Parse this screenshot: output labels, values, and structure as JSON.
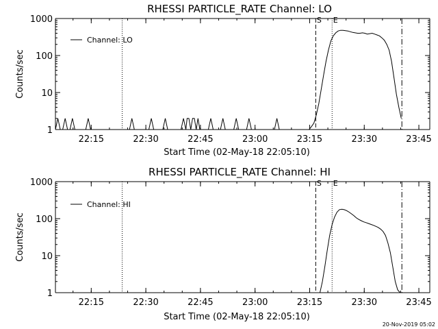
{
  "footer": {
    "timestamp": "20-Nov-2019 05:02"
  },
  "chart_data": [
    {
      "type": "line",
      "title": "RHESSI PARTICLE_RATE Channel: LO",
      "xlabel": "Start Time (02-May-18 22:05:10)",
      "ylabel": "Counts/sec",
      "yscale": "log",
      "ylim": [
        1,
        1000
      ],
      "xlim": [
        "22:05:10",
        "23:48:00"
      ],
      "xticks": [
        "22:15",
        "22:30",
        "22:45",
        "23:00",
        "23:15",
        "23:30",
        "23:45"
      ],
      "yticks": [
        "1",
        "10",
        "100",
        "1000"
      ],
      "legend": {
        "label": "Channel: LO",
        "position": "top-left"
      },
      "vlines": [
        {
          "x": "22:23:30",
          "style": "dotted",
          "label": ""
        },
        {
          "x": "23:16:40",
          "style": "dashed",
          "label": "S"
        },
        {
          "x": "23:21:10",
          "style": "dotted",
          "label": "E"
        },
        {
          "x": "23:40:20",
          "style": "dashdot",
          "label": ""
        }
      ],
      "series": [
        {
          "name": "Channel: LO",
          "x": [
            "22:05:10",
            "22:05:50",
            "22:06:30",
            "22:07:10",
            "22:07:50",
            "22:08:30",
            "22:09:10",
            "22:09:50",
            "22:10:30",
            "22:11:10",
            "22:13:30",
            "22:14:10",
            "22:14:50",
            "22:25:30",
            "22:26:10",
            "22:26:50",
            "22:30:50",
            "22:31:30",
            "22:32:10",
            "22:34:40",
            "22:35:20",
            "22:36:00",
            "22:39:40",
            "22:40:20",
            "22:41:00",
            "22:41:20",
            "22:41:50",
            "22:42:20",
            "22:42:50",
            "22:43:20",
            "22:43:50",
            "22:44:20",
            "22:44:50",
            "22:45:20",
            "22:47:10",
            "22:47:50",
            "22:48:30",
            "22:50:30",
            "22:51:10",
            "22:51:50",
            "22:54:10",
            "22:54:50",
            "22:55:30",
            "22:57:40",
            "22:58:20",
            "22:59:00",
            "23:05:20",
            "23:06:00",
            "23:06:40",
            "23:14:50",
            "23:15:30",
            "23:16:10",
            "23:16:50",
            "23:17:30",
            "23:18:10",
            "23:18:50",
            "23:19:30",
            "23:20:10",
            "23:20:50",
            "23:21:30",
            "23:22:10",
            "23:22:50",
            "23:23:30",
            "23:24:10",
            "23:24:50",
            "23:25:30",
            "23:26:10",
            "23:26:50",
            "23:27:30",
            "23:28:10",
            "23:28:50",
            "23:29:30",
            "23:30:10",
            "23:30:50",
            "23:31:30",
            "23:32:10",
            "23:32:50",
            "23:33:30",
            "23:34:10",
            "23:34:50",
            "23:35:30",
            "23:36:10",
            "23:36:50",
            "23:37:30",
            "23:38:10",
            "23:38:50",
            "23:39:30",
            "23:40:10"
          ],
          "values": [
            1,
            2,
            1,
            1,
            2,
            1,
            1,
            2,
            1,
            1,
            1,
            2,
            1,
            1,
            2,
            1,
            1,
            2,
            1,
            1,
            2,
            1,
            1,
            2,
            1,
            2,
            2,
            1,
            2,
            2,
            1,
            2,
            1,
            1,
            1,
            2,
            1,
            1,
            2,
            1,
            1,
            2,
            1,
            1,
            2,
            1,
            1,
            2,
            1,
            1,
            1.2,
            1.5,
            2.5,
            5,
            12,
            30,
            70,
            140,
            250,
            340,
            410,
            460,
            480,
            480,
            470,
            460,
            440,
            420,
            410,
            400,
            400,
            410,
            400,
            380,
            390,
            400,
            380,
            360,
            340,
            300,
            260,
            200,
            140,
            70,
            25,
            9,
            4,
            2
          ]
        }
      ]
    },
    {
      "type": "line",
      "title": "RHESSI PARTICLE_RATE Channel: HI",
      "xlabel": "Start Time (02-May-18 22:05:10)",
      "ylabel": "Counts/sec",
      "yscale": "log",
      "ylim": [
        1,
        1000
      ],
      "xlim": [
        "22:05:10",
        "23:48:00"
      ],
      "xticks": [
        "22:15",
        "22:30",
        "22:45",
        "23:00",
        "23:15",
        "23:30",
        "23:45"
      ],
      "yticks": [
        "1",
        "10",
        "100",
        "1000"
      ],
      "legend": {
        "label": "Channel: HI",
        "position": "top-left"
      },
      "vlines": [
        {
          "x": "22:23:30",
          "style": "dotted",
          "label": ""
        },
        {
          "x": "23:16:40",
          "style": "dashed",
          "label": "S"
        },
        {
          "x": "23:21:10",
          "style": "dotted",
          "label": "E"
        },
        {
          "x": "23:40:20",
          "style": "dashdot",
          "label": ""
        }
      ],
      "series": [
        {
          "name": "Channel: HI",
          "x": [
            "23:17:50",
            "23:18:30",
            "23:19:10",
            "23:19:50",
            "23:20:30",
            "23:21:10",
            "23:21:50",
            "23:22:30",
            "23:23:10",
            "23:23:50",
            "23:24:30",
            "23:25:10",
            "23:25:50",
            "23:26:30",
            "23:27:10",
            "23:27:50",
            "23:28:30",
            "23:29:10",
            "23:29:50",
            "23:30:30",
            "23:31:10",
            "23:31:50",
            "23:32:30",
            "23:33:10",
            "23:33:50",
            "23:34:30",
            "23:35:10",
            "23:35:50",
            "23:36:30",
            "23:37:10",
            "23:37:50",
            "23:38:30",
            "23:39:10",
            "23:39:50"
          ],
          "values": [
            1,
            2,
            5,
            14,
            35,
            70,
            110,
            150,
            175,
            180,
            175,
            165,
            150,
            135,
            120,
            105,
            95,
            88,
            82,
            78,
            74,
            70,
            66,
            62,
            58,
            52,
            45,
            35,
            22,
            12,
            5,
            2,
            1.2,
            1
          ]
        }
      ]
    }
  ]
}
